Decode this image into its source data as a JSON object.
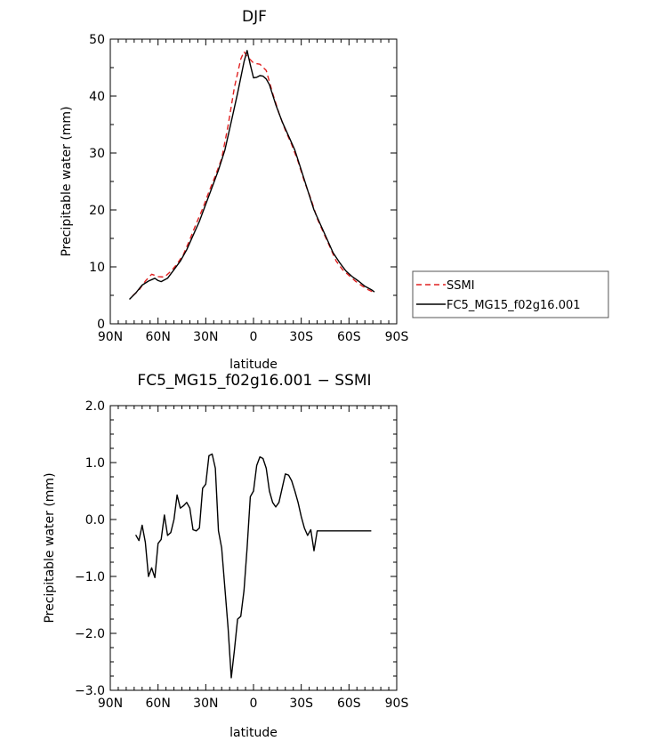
{
  "chart_data": [
    {
      "type": "line",
      "title": "DJF",
      "xlabel": "latitude",
      "ylabel": "Precipitable water (mm)",
      "xlim": [
        -90,
        90
      ],
      "ylim": [
        0,
        50
      ],
      "x_ticks": [
        -90,
        -60,
        -30,
        0,
        30,
        60,
        90
      ],
      "x_tick_labels": [
        "90N",
        "60N",
        "30N",
        "0",
        "30S",
        "60S",
        "90S"
      ],
      "y_ticks": [
        0,
        10,
        20,
        30,
        40,
        50
      ],
      "y_tick_labels": [
        "0",
        "10",
        "20",
        "30",
        "40",
        "50"
      ],
      "legend": "right",
      "series": [
        {
          "name": "SSMI",
          "color": "#e02020",
          "dash": "dashed",
          "x": [
            -76,
            -72,
            -68,
            -64,
            -60,
            -56,
            -52,
            -48,
            -44,
            -40,
            -36,
            -32,
            -28,
            -24,
            -20,
            -16,
            -12,
            -8,
            -6,
            -4,
            0,
            4,
            8,
            12,
            16,
            20,
            24,
            28,
            32,
            36,
            40,
            44,
            48,
            52,
            56,
            60,
            64,
            68,
            72,
            75
          ],
          "y": [
            4.9,
            5.9,
            7.5,
            8.7,
            8.3,
            8.2,
            9.2,
            10.5,
            12.2,
            14.8,
            17.6,
            20.2,
            23.2,
            26.0,
            29.0,
            34.8,
            41.5,
            46.5,
            47.8,
            47.0,
            45.8,
            45.6,
            44.5,
            40.5,
            37.0,
            34.0,
            31.5,
            28.5,
            25.0,
            22.0,
            18.5,
            16.0,
            13.5,
            11.0,
            9.5,
            8.5,
            7.5,
            6.7,
            6.0,
            5.6
          ]
        },
        {
          "name": "FC5_MG15_f02g16.001",
          "color": "#000000",
          "dash": "solid",
          "x": [
            -78,
            -74,
            -70,
            -66,
            -62,
            -60,
            -58,
            -54,
            -50,
            -46,
            -42,
            -38,
            -34,
            -30,
            -26,
            -22,
            -18,
            -14,
            -10,
            -6,
            -4,
            -2,
            0,
            2,
            4,
            6,
            8,
            10,
            14,
            18,
            22,
            26,
            30,
            34,
            38,
            42,
            46,
            50,
            54,
            58,
            62,
            66,
            70,
            74,
            76
          ],
          "y": [
            4.3,
            5.4,
            6.8,
            7.5,
            8.0,
            7.6,
            7.4,
            8.0,
            9.5,
            11.0,
            13.0,
            15.5,
            18.0,
            21.0,
            24.0,
            27.0,
            30.5,
            35.5,
            40.5,
            46.0,
            48.0,
            45.5,
            43.2,
            43.3,
            43.6,
            43.5,
            43.0,
            42.0,
            38.5,
            35.5,
            33.0,
            30.5,
            27.0,
            23.5,
            20.0,
            17.5,
            15.0,
            12.5,
            10.8,
            9.3,
            8.3,
            7.5,
            6.6,
            6.0,
            5.6
          ]
        }
      ]
    },
    {
      "type": "line",
      "title": "FC5_MG15_f02g16.001 − SSMI",
      "xlabel": "latitude",
      "ylabel": "Precipitable water (mm)",
      "xlim": [
        -90,
        90
      ],
      "ylim": [
        -3,
        2
      ],
      "x_ticks": [
        -90,
        -60,
        -30,
        0,
        30,
        60,
        90
      ],
      "x_tick_labels": [
        "90N",
        "60N",
        "30N",
        "0",
        "30S",
        "60S",
        "90S"
      ],
      "y_ticks": [
        -3,
        -2,
        -1,
        0,
        1,
        2
      ],
      "y_tick_labels": [
        "−3.0",
        "−2.0",
        "−1.0",
        "0.0",
        "1.0",
        "2.0"
      ],
      "series": [
        {
          "color": "#000000",
          "dash": "solid",
          "x": [
            -74,
            -72,
            -70,
            -68,
            -66,
            -64,
            -62,
            -60,
            -58,
            -56,
            -54,
            -52,
            -50,
            -48,
            -46,
            -44,
            -42,
            -40,
            -38,
            -36,
            -34,
            -32,
            -30,
            -28,
            -26,
            -24,
            -22,
            -20,
            -18,
            -16,
            -14,
            -12,
            -10,
            -8,
            -6,
            -4,
            -2,
            0,
            2,
            4,
            6,
            8,
            10,
            12,
            14,
            16,
            18,
            20,
            22,
            24,
            26,
            28,
            30,
            32,
            34,
            36,
            38,
            40,
            42,
            44,
            46,
            48,
            50,
            52,
            54,
            56,
            58,
            60,
            62,
            64,
            66,
            68,
            70,
            72,
            74
          ],
          "y": [
            -0.27,
            -0.37,
            -0.1,
            -0.4,
            -1.0,
            -0.85,
            -1.02,
            -0.42,
            -0.35,
            0.08,
            -0.28,
            -0.23,
            0.0,
            0.43,
            0.2,
            0.24,
            0.3,
            0.2,
            -0.18,
            -0.2,
            -0.15,
            0.55,
            0.62,
            1.12,
            1.15,
            0.9,
            -0.2,
            -0.5,
            -1.2,
            -1.9,
            -2.78,
            -2.3,
            -1.75,
            -1.7,
            -1.25,
            -0.5,
            0.4,
            0.5,
            0.95,
            1.1,
            1.07,
            0.9,
            0.5,
            0.3,
            0.22,
            0.3,
            0.55,
            0.8,
            0.78,
            0.68,
            0.5,
            0.3,
            0.05,
            -0.15,
            -0.28,
            -0.18,
            -0.55,
            -0.2,
            -0.2,
            -0.2,
            -0.2,
            -0.2,
            -0.2,
            -0.2,
            -0.2,
            -0.2,
            -0.2,
            -0.2,
            -0.2,
            -0.2,
            -0.2,
            -0.2,
            -0.2,
            -0.2,
            -0.2
          ]
        }
      ]
    }
  ]
}
